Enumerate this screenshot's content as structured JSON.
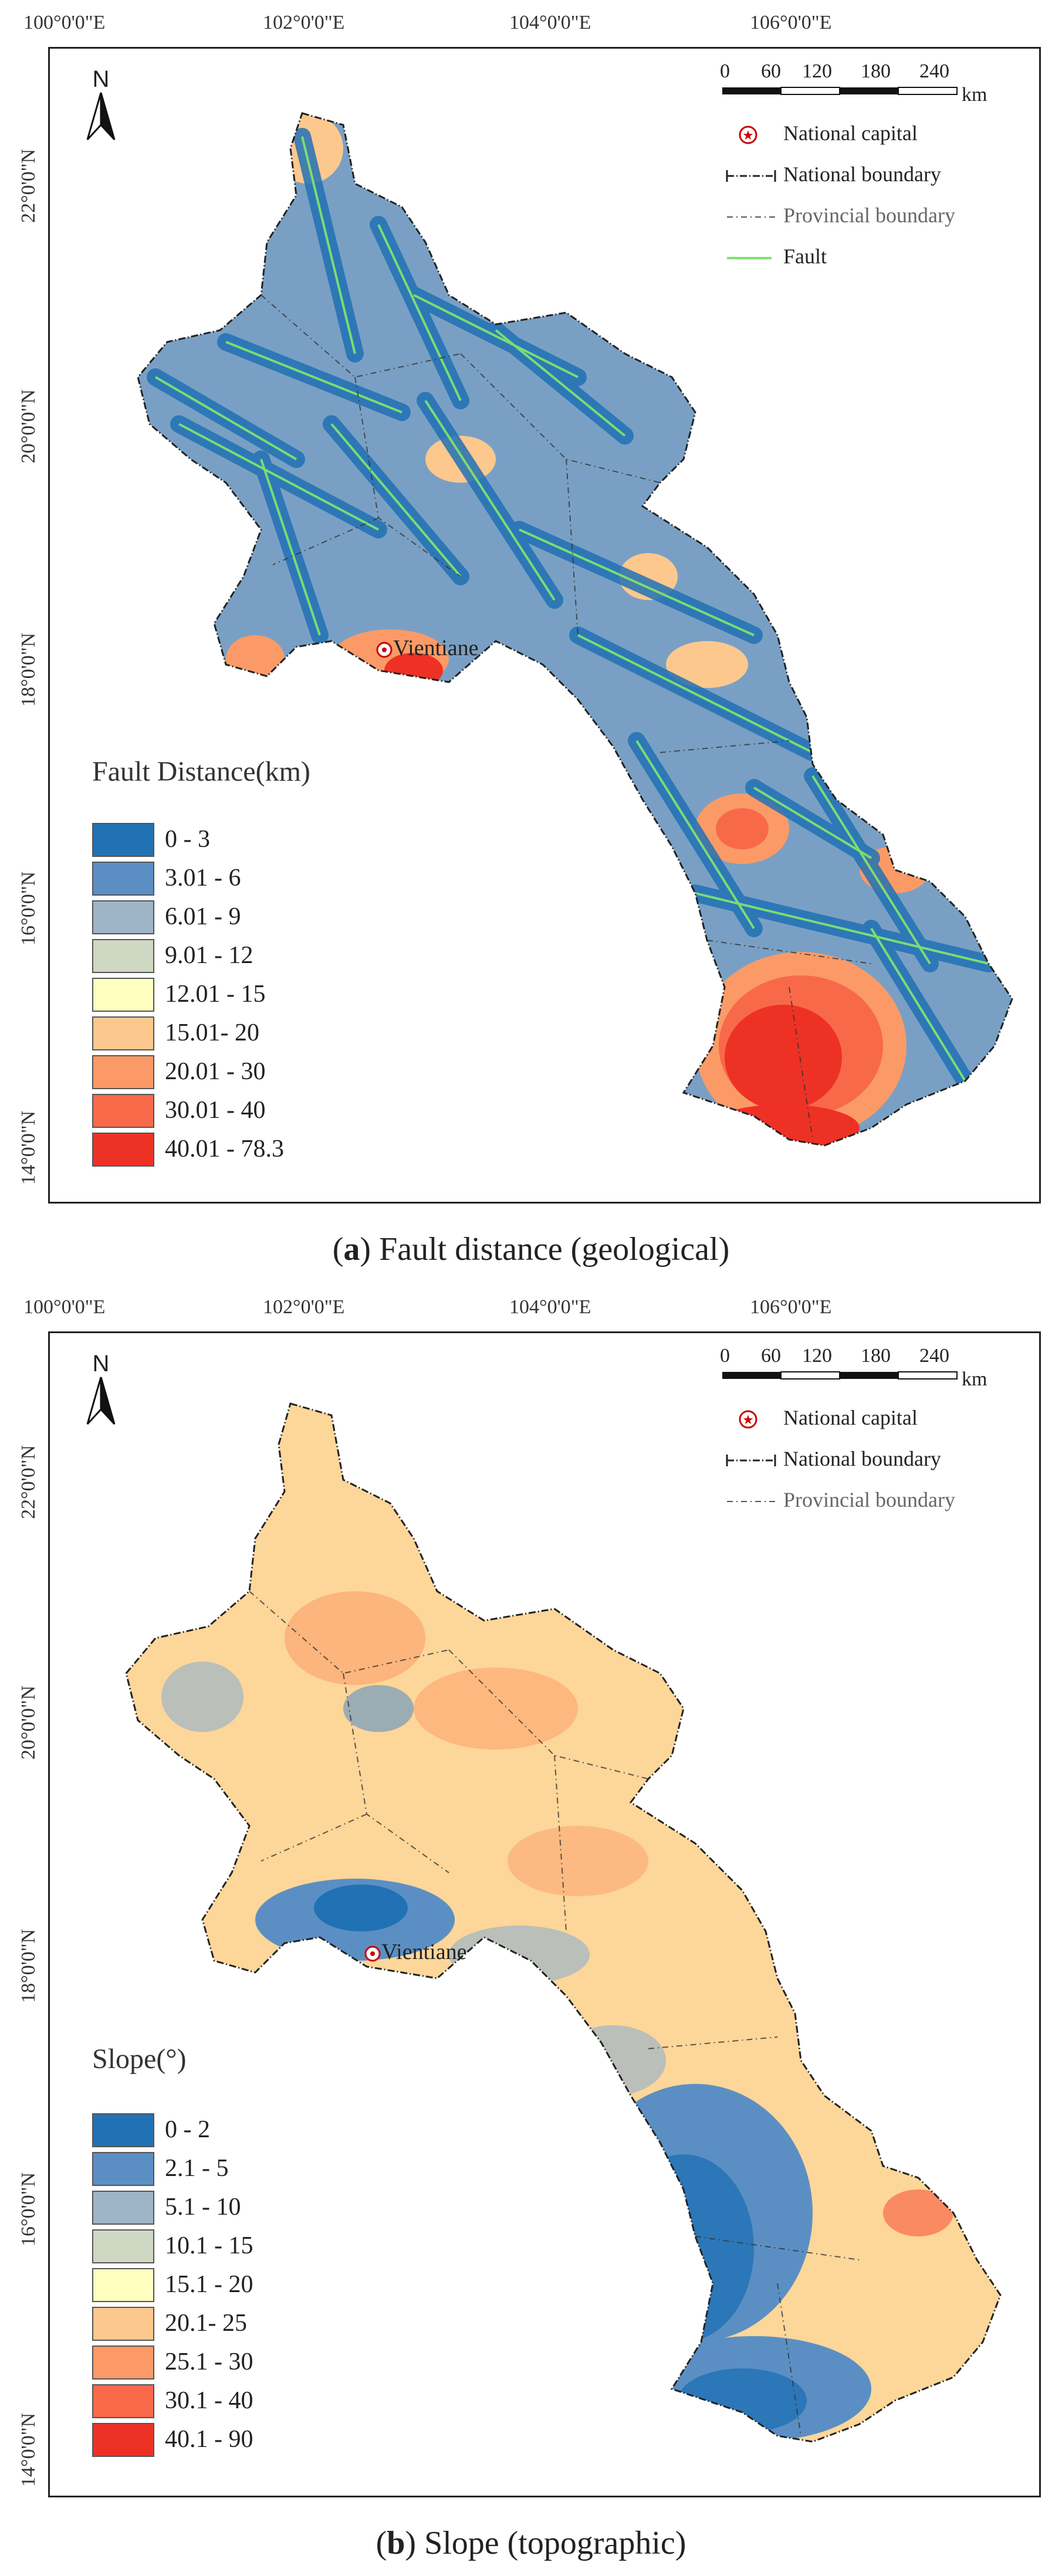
{
  "figure": {
    "panels": [
      {
        "id": "a",
        "caption_letter": "a",
        "caption_text": "Fault distance (geological)",
        "lon_ticks": [
          "100°0'0\"E",
          "102°0'0\"E",
          "104°0'0\"E",
          "106°0'0\"E"
        ],
        "lat_ticks": [
          "22°0'0\"N",
          "20°0'0\"N",
          "18°0'0\"N",
          "16°0'0\"N",
          "14°0'0\"N"
        ],
        "north_label": "N",
        "scale": {
          "values": [
            "0",
            "60",
            "120",
            "180",
            "240"
          ],
          "unit": "km"
        },
        "map_legend": [
          {
            "symbol": "national-capital",
            "label": "National capital"
          },
          {
            "symbol": "national-boundary",
            "label": "National boundary"
          },
          {
            "symbol": "provincial-boundary",
            "label": "Provincial boundary"
          },
          {
            "symbol": "fault",
            "label": "Fault"
          }
        ],
        "capital_label": "Vientiane",
        "legend_title": "Fault Distance(km)",
        "classes": [
          {
            "label": "0 - 3",
            "color": "#2171b5"
          },
          {
            "label": "3.01 - 6",
            "color": "#5b8fc4"
          },
          {
            "label": "6.01 - 9",
            "color": "#9db5c6"
          },
          {
            "label": "9.01 - 12",
            "color": "#cfd8c2"
          },
          {
            "label": "12.01 - 15",
            "color": "#ffffc0"
          },
          {
            "label": "15.01- 20",
            "color": "#fdc88d"
          },
          {
            "label": "20.01 - 30",
            "color": "#fb9a66"
          },
          {
            "label": "30.01 - 40",
            "color": "#f8694a"
          },
          {
            "label": "40.01 - 78.3",
            "color": "#ee3125"
          }
        ]
      },
      {
        "id": "b",
        "caption_letter": "b",
        "caption_text": "Slope (topographic)",
        "lon_ticks": [
          "100°0'0\"E",
          "102°0'0\"E",
          "104°0'0\"E",
          "106°0'0\"E"
        ],
        "lat_ticks": [
          "22°0'0\"N",
          "20°0'0\"N",
          "18°0'0\"N",
          "16°0'0\"N",
          "14°0'0\"N"
        ],
        "north_label": "N",
        "scale": {
          "values": [
            "0",
            "60",
            "120",
            "180",
            "240"
          ],
          "unit": "km"
        },
        "map_legend": [
          {
            "symbol": "national-capital",
            "label": "National capital"
          },
          {
            "symbol": "national-boundary",
            "label": "National boundary"
          },
          {
            "symbol": "provincial-boundary",
            "label": "Provincial boundary"
          }
        ],
        "capital_label": "Vientiane",
        "legend_title": "Slope(°)",
        "classes": [
          {
            "label": "0 - 2",
            "color": "#2171b5"
          },
          {
            "label": "2.1 - 5",
            "color": "#5b8fc4"
          },
          {
            "label": "5.1 - 10",
            "color": "#9db5c6"
          },
          {
            "label": "10.1 - 15",
            "color": "#cfd8c2"
          },
          {
            "label": "15.1 - 20",
            "color": "#ffffc0"
          },
          {
            "label": "20.1- 25",
            "color": "#fdc88d"
          },
          {
            "label": "25.1 - 30",
            "color": "#fb9a66"
          },
          {
            "label": "30.1 - 40",
            "color": "#f8694a"
          },
          {
            "label": "40.1 - 90",
            "color": "#ee3125"
          }
        ]
      }
    ]
  }
}
